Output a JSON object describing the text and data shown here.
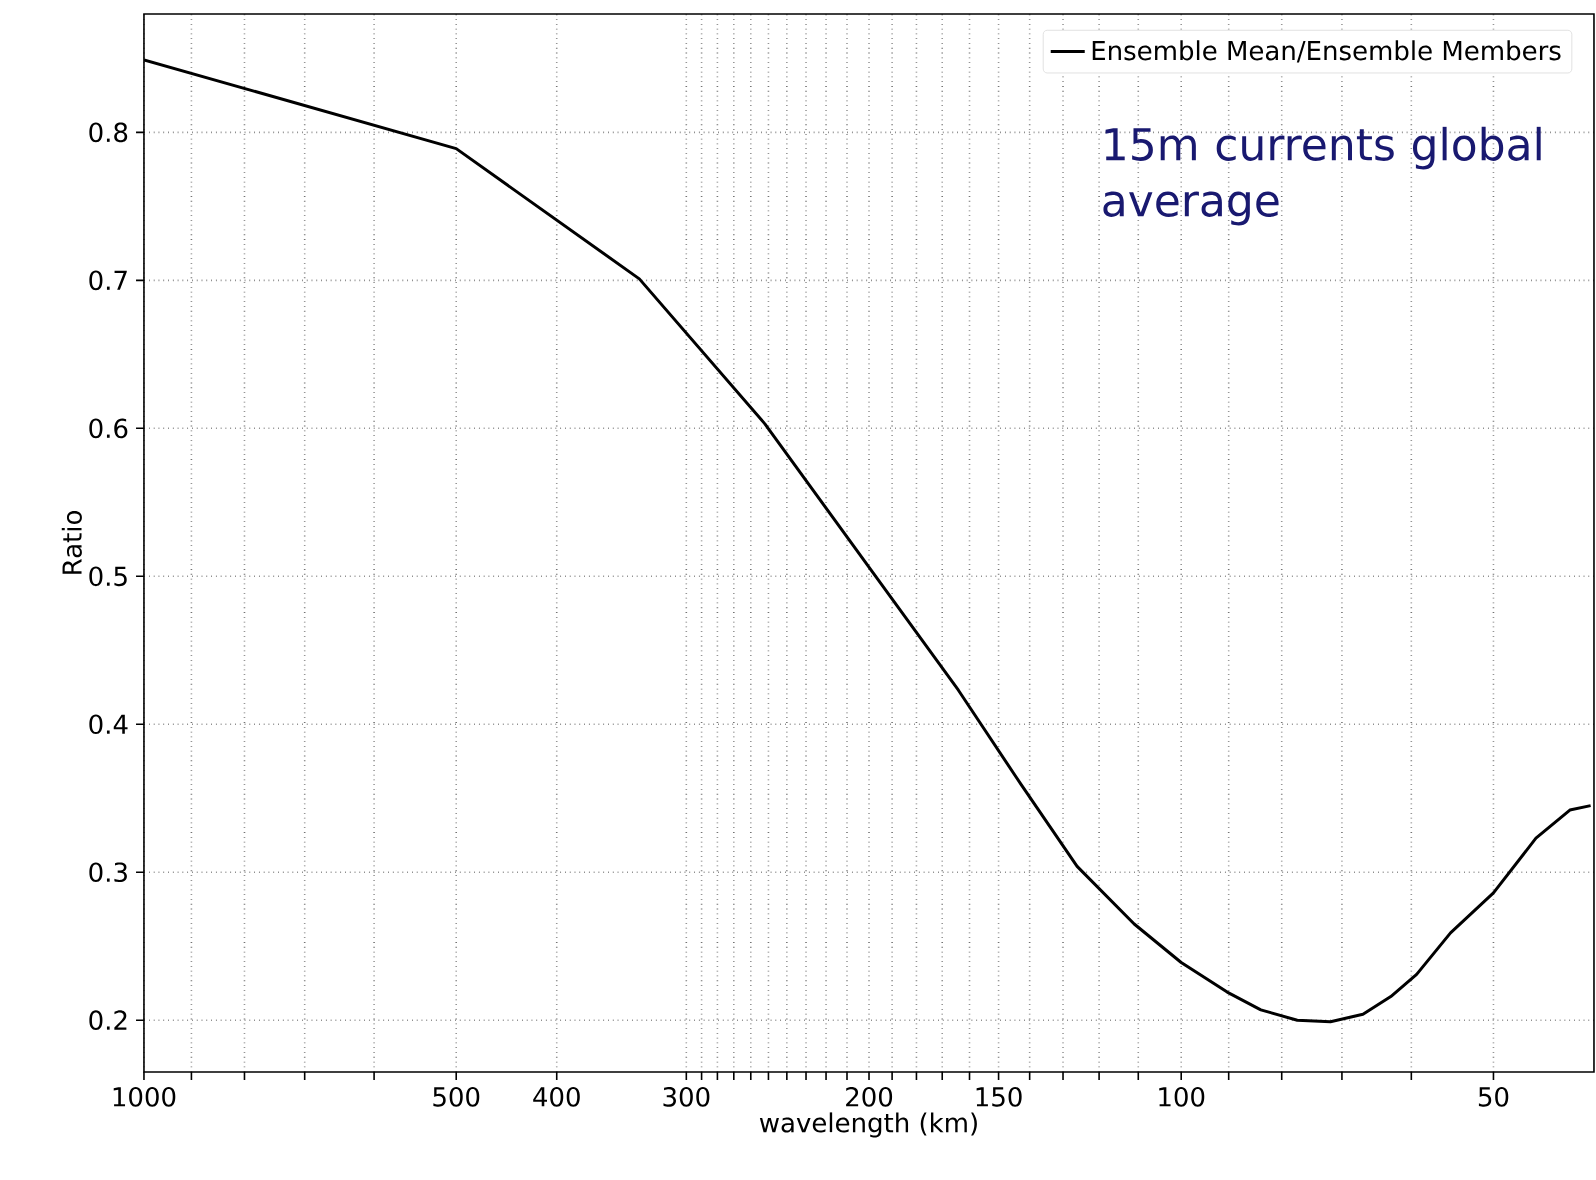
{
  "chart_data": {
    "type": "line",
    "xlabel": "wavelength (km)",
    "ylabel": "Ratio",
    "x": [
      1000,
      500,
      333,
      252,
      199,
      164,
      142.6,
      126,
      111,
      100,
      90.3,
      83.8,
      77.3,
      71.8,
      66.8,
      62.8,
      59.3,
      55,
      50,
      45.5,
      42.2,
      40.3
    ],
    "series": [
      {
        "name": "Ensemble Mean/Ensemble Members",
        "color": "#000000",
        "values": [
          0.849,
          0.789,
          0.701,
          0.603,
          0.504,
          0.423,
          0.359,
          0.304,
          0.265,
          0.239,
          0.219,
          0.207,
          0.2,
          0.199,
          0.204,
          0.216,
          0.231,
          0.259,
          0.286,
          0.323,
          0.342,
          0.345
        ]
      }
    ],
    "annotations": [
      "15m currents global average"
    ],
    "log": "x",
    "xlim": [
      1000,
      40
    ],
    "ylim": [
      0.165,
      0.88
    ],
    "xticks": [
      1000,
      {
        "value": 900,
        "label": null
      },
      {
        "value": 800,
        "label": null
      },
      {
        "value": 700,
        "label": null
      },
      {
        "value": 600,
        "label": null
      },
      500,
      400,
      300,
      {
        "value": 290,
        "label": null
      },
      {
        "value": 280,
        "label": null
      },
      {
        "value": 270,
        "label": null
      },
      {
        "value": 260,
        "label": null
      },
      {
        "value": 250,
        "label": null
      },
      {
        "value": 240,
        "label": null
      },
      {
        "value": 230,
        "label": null
      },
      {
        "value": 220,
        "label": null
      },
      {
        "value": 210,
        "label": null
      },
      200,
      {
        "value": 190,
        "label": null
      },
      {
        "value": 180,
        "label": null
      },
      {
        "value": 170,
        "label": null
      },
      {
        "value": 160,
        "label": null
      },
      150,
      {
        "value": 140,
        "label": null
      },
      {
        "value": 130,
        "label": null
      },
      {
        "value": 120,
        "label": null
      },
      {
        "value": 110,
        "label": null
      },
      100,
      {
        "value": 90,
        "label": null
      },
      {
        "value": 80,
        "label": null
      },
      {
        "value": 70,
        "label": null
      },
      {
        "value": 60,
        "label": null
      },
      50
    ],
    "yticks": [
      0.2,
      0.3,
      0.4,
      0.5,
      0.6,
      0.7,
      0.8
    ],
    "grid": true,
    "legend": "top right",
    "line_style": "solid",
    "marker": "none"
  }
}
